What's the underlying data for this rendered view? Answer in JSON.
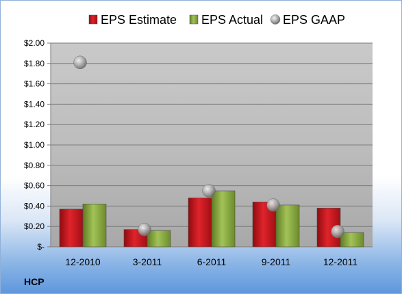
{
  "chart_data": {
    "type": "bar",
    "categories": [
      "12-2010",
      "3-2011",
      "6-2011",
      "9-2011",
      "12-2011"
    ],
    "series": [
      {
        "name": "EPS Estimate",
        "type": "bar",
        "color": "#c0141b",
        "values": [
          0.37,
          0.17,
          0.48,
          0.44,
          0.38
        ]
      },
      {
        "name": "EPS Actual",
        "type": "bar",
        "color": "#86a83a",
        "values": [
          0.42,
          0.16,
          0.55,
          0.41,
          0.14
        ]
      },
      {
        "name": "EPS GAAP",
        "type": "scatter",
        "color": "#a9a9a9",
        "values": [
          1.81,
          0.17,
          0.55,
          0.41,
          0.15
        ]
      }
    ],
    "ylim": [
      0,
      2.0
    ],
    "yticks": [
      0,
      0.2,
      0.4,
      0.6,
      0.8,
      1.0,
      1.2,
      1.4,
      1.6,
      1.8,
      2.0
    ],
    "ytick_labels": [
      "$-",
      "$0.20",
      "$0.40",
      "$0.60",
      "$0.80",
      "$1.00",
      "$1.20",
      "$1.40",
      "$1.60",
      "$1.80",
      "$2.00"
    ],
    "grid": true,
    "legend_position": "top",
    "ticker": "HCP"
  }
}
